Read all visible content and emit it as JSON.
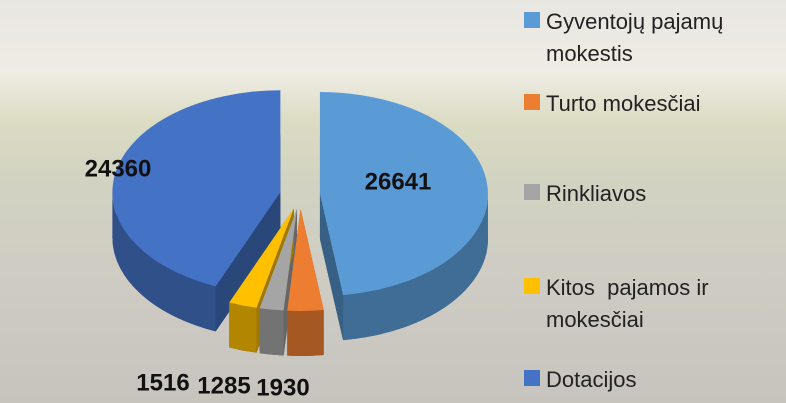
{
  "chart_data": {
    "type": "pie3d",
    "categories": [
      "Gyventojų pajamų mokestis",
      "Turto mokesčiai",
      "Rinkliavos",
      "Kitos  pajamos ir mokesčiai",
      "Dotacijos"
    ],
    "values": [
      26641,
      1930,
      1285,
      1516,
      24360
    ],
    "colors": [
      "#5b9bd5",
      "#ed7d31",
      "#a5a5a5",
      "#ffc000",
      "#4472c4"
    ],
    "legend": "right"
  }
}
